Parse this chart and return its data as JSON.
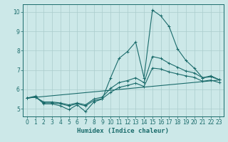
{
  "xlabel": "Humidex (Indice chaleur)",
  "bg_color": "#cce8e8",
  "grid_color": "#aacccc",
  "line_color": "#1a6b6b",
  "xlim": [
    -0.5,
    23.5
  ],
  "ylim": [
    4.6,
    10.4
  ],
  "xticks": [
    0,
    1,
    2,
    3,
    4,
    5,
    6,
    7,
    8,
    9,
    10,
    11,
    12,
    13,
    14,
    15,
    16,
    17,
    18,
    19,
    20,
    21,
    22,
    23
  ],
  "yticks": [
    5,
    6,
    7,
    8,
    9,
    10
  ],
  "line1_x": [
    0,
    1,
    2,
    3,
    4,
    5,
    6,
    7,
    8,
    9,
    10,
    11,
    12,
    13,
    14,
    15,
    16,
    17,
    18,
    19,
    20,
    21,
    22,
    23
  ],
  "line1_y": [
    5.55,
    5.65,
    5.25,
    5.25,
    5.15,
    4.95,
    5.2,
    4.85,
    5.35,
    5.5,
    6.6,
    7.6,
    7.95,
    8.45,
    6.6,
    10.1,
    9.8,
    9.25,
    8.1,
    7.5,
    7.1,
    6.6,
    6.7,
    6.5
  ],
  "line2_x": [
    0,
    1,
    2,
    3,
    4,
    5,
    6,
    7,
    8,
    9,
    10,
    11,
    12,
    13,
    14,
    15,
    16,
    17,
    18,
    19,
    20,
    21,
    22,
    23
  ],
  "line2_y": [
    5.55,
    5.6,
    5.35,
    5.35,
    5.3,
    5.2,
    5.3,
    5.2,
    5.5,
    5.6,
    6.05,
    6.35,
    6.45,
    6.6,
    6.35,
    7.7,
    7.6,
    7.35,
    7.15,
    6.95,
    6.85,
    6.6,
    6.65,
    6.5
  ],
  "line3_x": [
    0,
    1,
    2,
    3,
    4,
    5,
    6,
    7,
    8,
    9,
    10,
    11,
    12,
    13,
    14,
    15,
    16,
    17,
    18,
    19,
    20,
    21,
    22,
    23
  ],
  "line3_y": [
    5.55,
    5.6,
    5.3,
    5.3,
    5.25,
    5.15,
    5.25,
    5.15,
    5.42,
    5.52,
    5.85,
    6.1,
    6.2,
    6.32,
    6.15,
    7.1,
    7.05,
    6.9,
    6.8,
    6.7,
    6.62,
    6.42,
    6.48,
    6.35
  ],
  "line4_x": [
    0,
    23
  ],
  "line4_y": [
    5.55,
    6.48
  ]
}
